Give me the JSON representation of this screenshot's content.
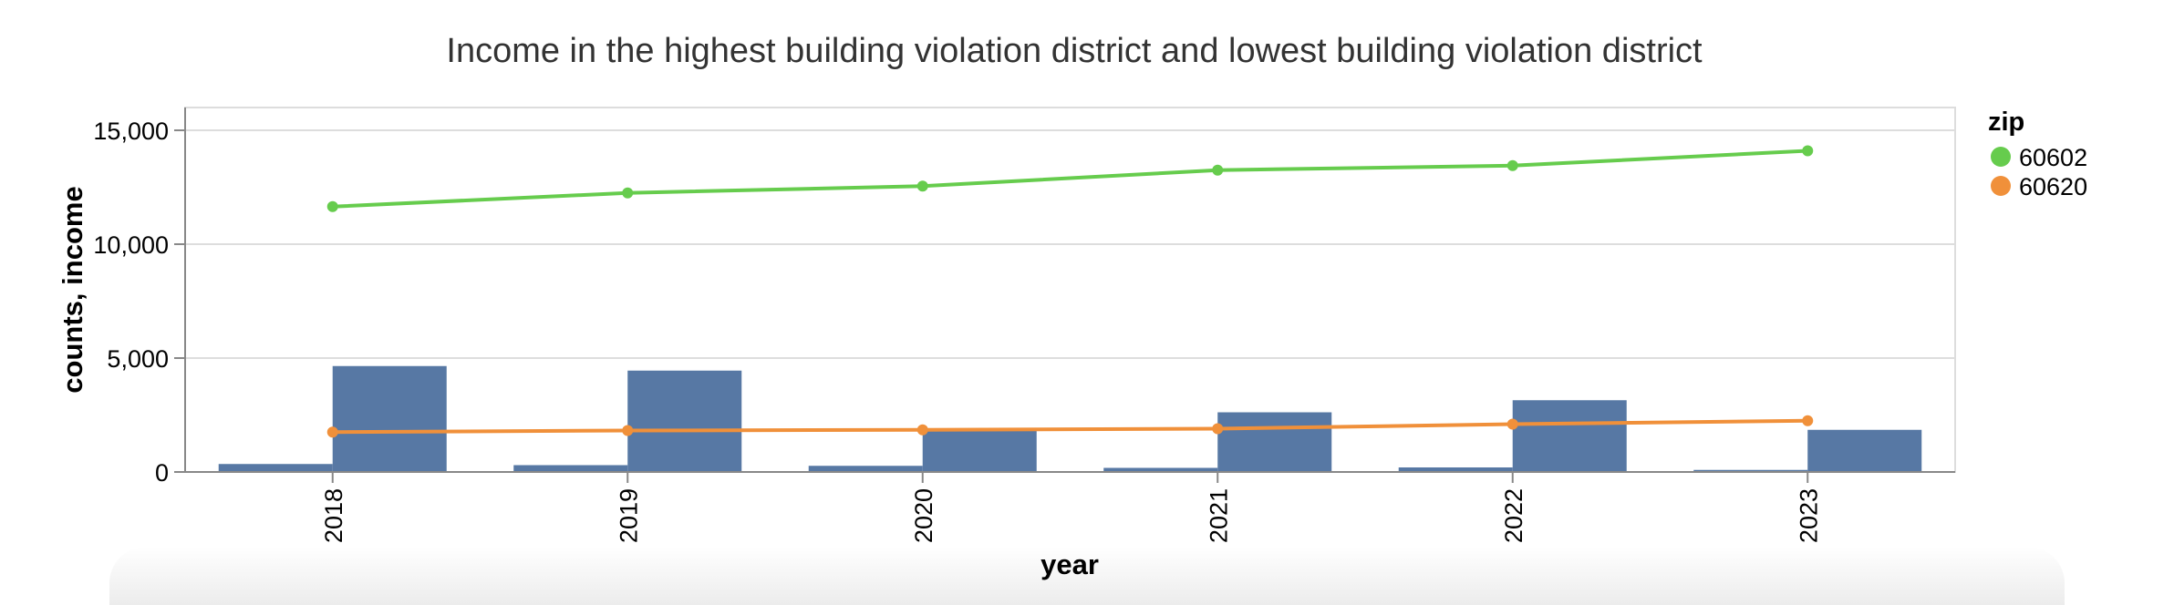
{
  "chart_data": {
    "type": "bar+line",
    "title": "Income in the highest building violation district and lowest building violation district",
    "xlabel": "year",
    "ylabel": "counts, income",
    "categories": [
      "2018",
      "2019",
      "2020",
      "2021",
      "2022",
      "2023"
    ],
    "ylim": [
      0,
      16000
    ],
    "yticks": [
      0,
      5000,
      10000,
      15000
    ],
    "ytick_labels": [
      "0",
      "5,000",
      "10,000",
      "15,000"
    ],
    "grid": true,
    "bars": {
      "color": "#5778a4",
      "series": [
        {
          "values": [
            350,
            300,
            270,
            180,
            200,
            90
          ]
        },
        {
          "values": [
            4650,
            4450,
            1850,
            2620,
            3150,
            1850
          ]
        }
      ]
    },
    "legend": {
      "title": "zip",
      "position": "top-right",
      "items": [
        {
          "label": "60602",
          "color": "#66cc4d"
        },
        {
          "label": "60620",
          "color": "#f0903a"
        }
      ]
    },
    "lines": [
      {
        "name": "60602",
        "color": "#66cc4d",
        "values": [
          11650,
          12250,
          12550,
          13250,
          13450,
          14100
        ]
      },
      {
        "name": "60620",
        "color": "#f0903a",
        "values": [
          1750,
          1820,
          1850,
          1900,
          2100,
          2250
        ]
      }
    ]
  }
}
